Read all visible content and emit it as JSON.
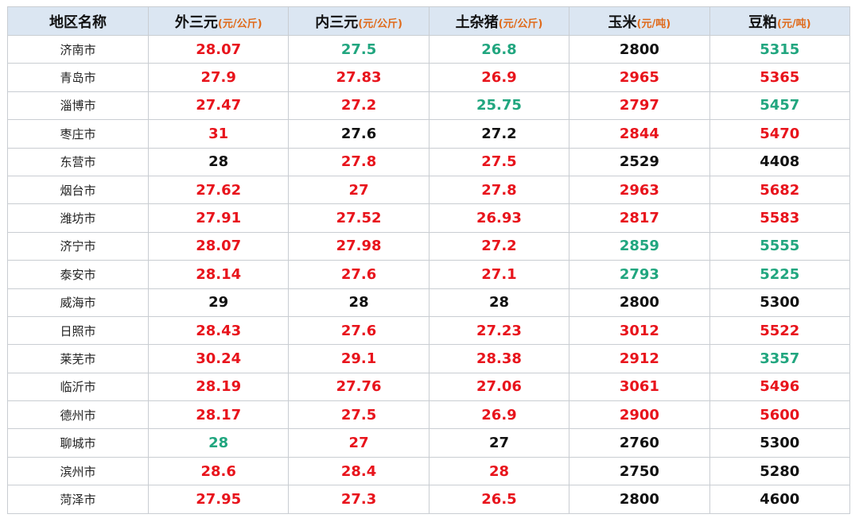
{
  "colors": {
    "up": "#e8141c",
    "down": "#21a67f",
    "flat": "#111111",
    "header_bg": "#dbe6f2",
    "unit": "#e06a1a"
  },
  "table": {
    "headers": [
      {
        "label": "地区名称",
        "unit": ""
      },
      {
        "label": "外三元",
        "unit": "(元/公斤)"
      },
      {
        "label": "内三元",
        "unit": "(元/公斤)"
      },
      {
        "label": "土杂猪",
        "unit": "(元/公斤)"
      },
      {
        "label": "玉米",
        "unit": "(元/吨)"
      },
      {
        "label": "豆粕",
        "unit": "(元/吨)"
      }
    ],
    "rows": [
      {
        "region": "济南市",
        "cells": [
          {
            "v": "28.07",
            "t": "up"
          },
          {
            "v": "27.5",
            "t": "down"
          },
          {
            "v": "26.8",
            "t": "down"
          },
          {
            "v": "2800",
            "t": "flat"
          },
          {
            "v": "5315",
            "t": "down"
          }
        ]
      },
      {
        "region": "青岛市",
        "cells": [
          {
            "v": "27.9",
            "t": "up"
          },
          {
            "v": "27.83",
            "t": "up"
          },
          {
            "v": "26.9",
            "t": "up"
          },
          {
            "v": "2965",
            "t": "up"
          },
          {
            "v": "5365",
            "t": "up"
          }
        ]
      },
      {
        "region": "淄博市",
        "cells": [
          {
            "v": "27.47",
            "t": "up"
          },
          {
            "v": "27.2",
            "t": "up"
          },
          {
            "v": "25.75",
            "t": "down"
          },
          {
            "v": "2797",
            "t": "up"
          },
          {
            "v": "5457",
            "t": "down"
          }
        ]
      },
      {
        "region": "枣庄市",
        "cells": [
          {
            "v": "31",
            "t": "up"
          },
          {
            "v": "27.6",
            "t": "flat"
          },
          {
            "v": "27.2",
            "t": "flat"
          },
          {
            "v": "2844",
            "t": "up"
          },
          {
            "v": "5470",
            "t": "up"
          }
        ]
      },
      {
        "region": "东营市",
        "cells": [
          {
            "v": "28",
            "t": "flat"
          },
          {
            "v": "27.8",
            "t": "up"
          },
          {
            "v": "27.5",
            "t": "up"
          },
          {
            "v": "2529",
            "t": "flat"
          },
          {
            "v": "4408",
            "t": "flat"
          }
        ]
      },
      {
        "region": "烟台市",
        "cells": [
          {
            "v": "27.62",
            "t": "up"
          },
          {
            "v": "27",
            "t": "up"
          },
          {
            "v": "27.8",
            "t": "up"
          },
          {
            "v": "2963",
            "t": "up"
          },
          {
            "v": "5682",
            "t": "up"
          }
        ]
      },
      {
        "region": "潍坊市",
        "cells": [
          {
            "v": "27.91",
            "t": "up"
          },
          {
            "v": "27.52",
            "t": "up"
          },
          {
            "v": "26.93",
            "t": "up"
          },
          {
            "v": "2817",
            "t": "up"
          },
          {
            "v": "5583",
            "t": "up"
          }
        ]
      },
      {
        "region": "济宁市",
        "cells": [
          {
            "v": "28.07",
            "t": "up"
          },
          {
            "v": "27.98",
            "t": "up"
          },
          {
            "v": "27.2",
            "t": "up"
          },
          {
            "v": "2859",
            "t": "down"
          },
          {
            "v": "5555",
            "t": "down"
          }
        ]
      },
      {
        "region": "泰安市",
        "cells": [
          {
            "v": "28.14",
            "t": "up"
          },
          {
            "v": "27.6",
            "t": "up"
          },
          {
            "v": "27.1",
            "t": "up"
          },
          {
            "v": "2793",
            "t": "down"
          },
          {
            "v": "5225",
            "t": "down"
          }
        ]
      },
      {
        "region": "威海市",
        "cells": [
          {
            "v": "29",
            "t": "flat"
          },
          {
            "v": "28",
            "t": "flat"
          },
          {
            "v": "28",
            "t": "flat"
          },
          {
            "v": "2800",
            "t": "flat"
          },
          {
            "v": "5300",
            "t": "flat"
          }
        ]
      },
      {
        "region": "日照市",
        "cells": [
          {
            "v": "28.43",
            "t": "up"
          },
          {
            "v": "27.6",
            "t": "up"
          },
          {
            "v": "27.23",
            "t": "up"
          },
          {
            "v": "3012",
            "t": "up"
          },
          {
            "v": "5522",
            "t": "up"
          }
        ]
      },
      {
        "region": "莱芜市",
        "cells": [
          {
            "v": "30.24",
            "t": "up"
          },
          {
            "v": "29.1",
            "t": "up"
          },
          {
            "v": "28.38",
            "t": "up"
          },
          {
            "v": "2912",
            "t": "up"
          },
          {
            "v": "3357",
            "t": "down"
          }
        ]
      },
      {
        "region": "临沂市",
        "cells": [
          {
            "v": "28.19",
            "t": "up"
          },
          {
            "v": "27.76",
            "t": "up"
          },
          {
            "v": "27.06",
            "t": "up"
          },
          {
            "v": "3061",
            "t": "up"
          },
          {
            "v": "5496",
            "t": "up"
          }
        ]
      },
      {
        "region": "德州市",
        "cells": [
          {
            "v": "28.17",
            "t": "up"
          },
          {
            "v": "27.5",
            "t": "up"
          },
          {
            "v": "26.9",
            "t": "up"
          },
          {
            "v": "2900",
            "t": "up"
          },
          {
            "v": "5600",
            "t": "up"
          }
        ]
      },
      {
        "region": "聊城市",
        "cells": [
          {
            "v": "28",
            "t": "down"
          },
          {
            "v": "27",
            "t": "up"
          },
          {
            "v": "27",
            "t": "flat"
          },
          {
            "v": "2760",
            "t": "flat"
          },
          {
            "v": "5300",
            "t": "flat"
          }
        ]
      },
      {
        "region": "滨州市",
        "cells": [
          {
            "v": "28.6",
            "t": "up"
          },
          {
            "v": "28.4",
            "t": "up"
          },
          {
            "v": "28",
            "t": "up"
          },
          {
            "v": "2750",
            "t": "flat"
          },
          {
            "v": "5280",
            "t": "flat"
          }
        ]
      },
      {
        "region": "菏泽市",
        "cells": [
          {
            "v": "27.95",
            "t": "up"
          },
          {
            "v": "27.3",
            "t": "up"
          },
          {
            "v": "26.5",
            "t": "up"
          },
          {
            "v": "2800",
            "t": "flat"
          },
          {
            "v": "4600",
            "t": "flat"
          }
        ]
      }
    ]
  }
}
